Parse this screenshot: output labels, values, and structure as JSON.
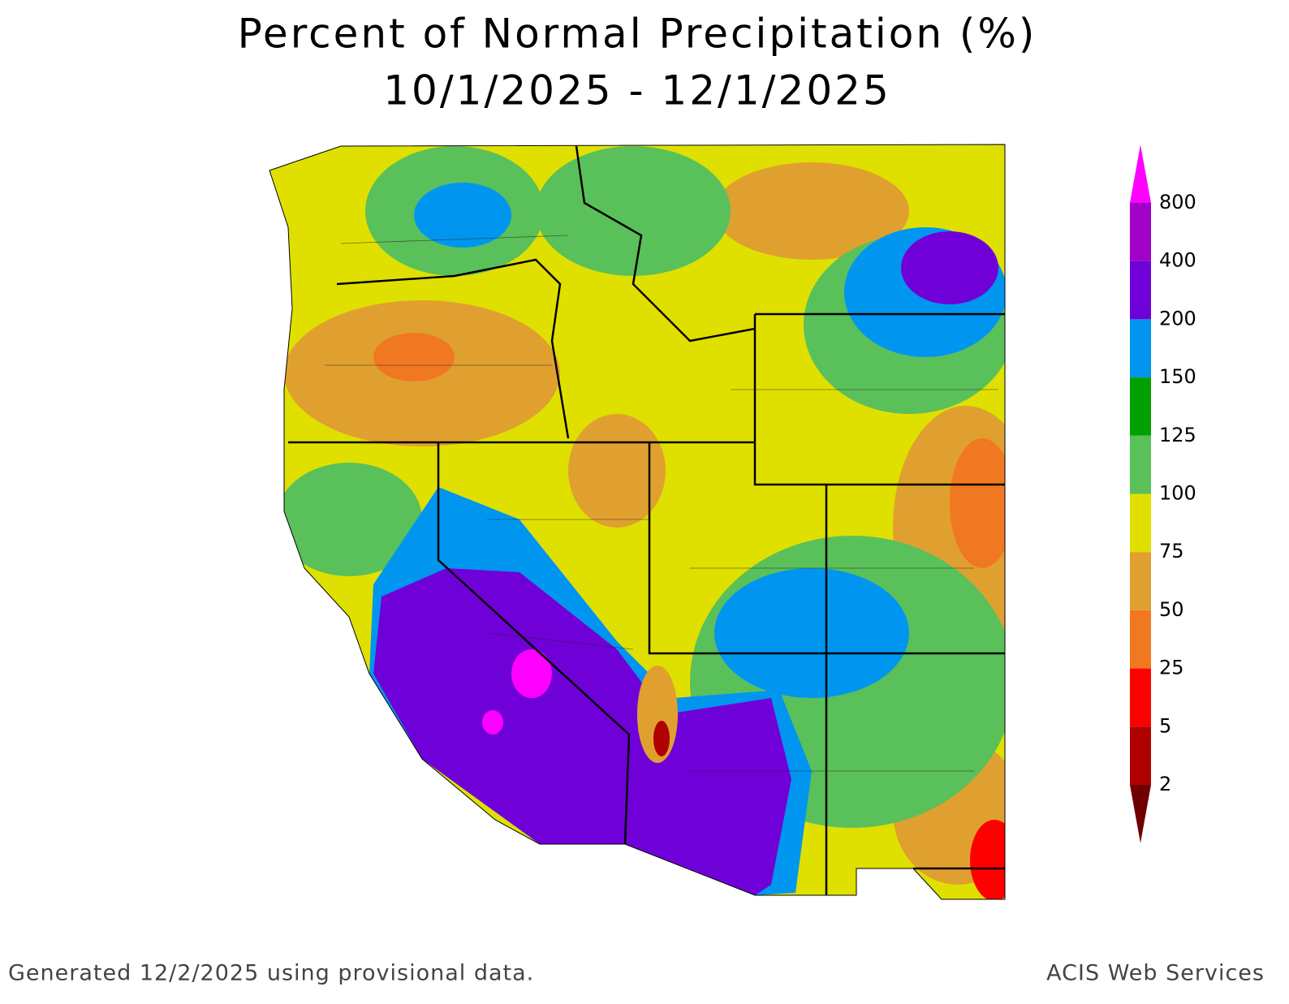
{
  "header": {
    "title": "Percent of Normal Precipitation (%)",
    "subtitle": "10/1/2025 - 12/1/2025"
  },
  "legend": {
    "labels": [
      "800",
      "400",
      "200",
      "150",
      "125",
      "100",
      "75",
      "50",
      "25",
      "5",
      "2"
    ],
    "colors": [
      "#ff00ff",
      "#a000c8",
      "#7000d8",
      "#0096f0",
      "#00a000",
      "#5ac05a",
      "#e0e000",
      "#e0a030",
      "#f07820",
      "#ff0000",
      "#b00000",
      "#700000"
    ]
  },
  "footer": {
    "left": "Generated 12/2/2025 using provisional data.",
    "right": "ACIS Web Services"
  }
}
